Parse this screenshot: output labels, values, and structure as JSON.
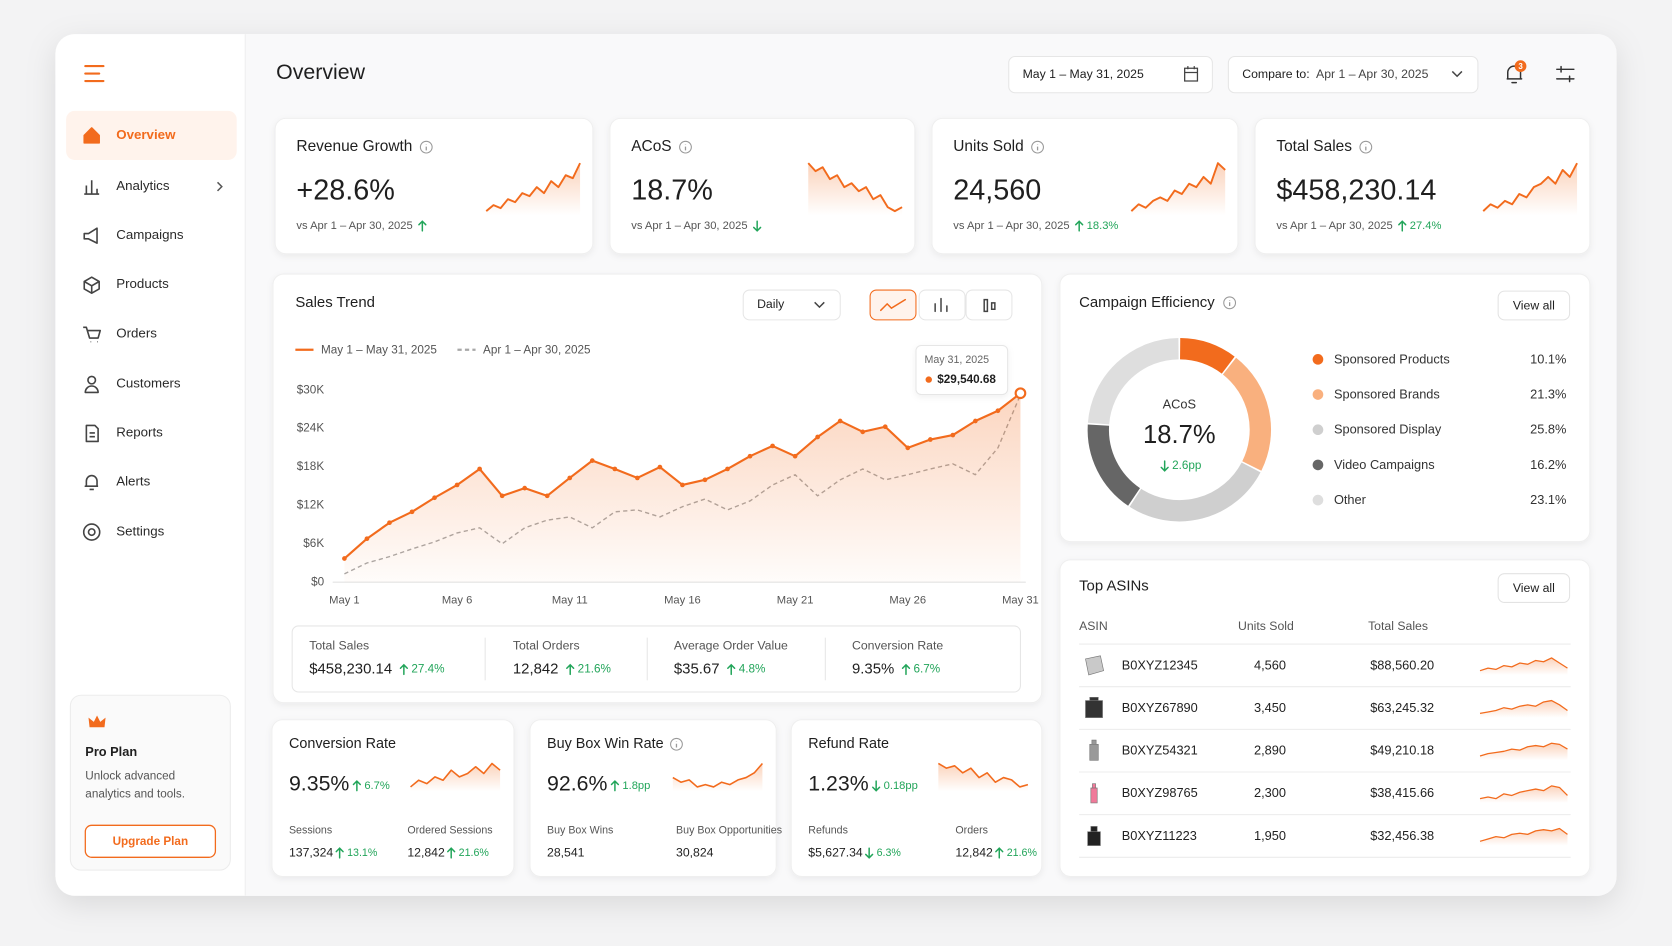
{
  "sidebar": {
    "nav": [
      "Overview",
      "Analytics",
      "Campaigns",
      "Products",
      "Orders",
      "Customers",
      "Reports",
      "Alerts",
      "Settings"
    ],
    "active": 0,
    "plan": {
      "title": "Pro Plan",
      "lines": [
        "Unlock advanced",
        "analytics and tools."
      ],
      "button": "Upgrade Plan"
    }
  },
  "header": {
    "title": "Overview",
    "date_range": "May 1 – May 31, 2025",
    "compare_label": "Compare to:",
    "compare_range": "Apr 1 – Apr 30, 2025",
    "notification_count": 3
  },
  "kpis": [
    {
      "title": "Revenue Growth",
      "value": "+28.6%",
      "compare": "vs Apr 1 – Apr 30, 2025",
      "direction": "up",
      "info": true,
      "trend": [
        2,
        3,
        2.5,
        4,
        3.5,
        5,
        4.5,
        6,
        5,
        7,
        6,
        8,
        7.5,
        10
      ]
    },
    {
      "title": "ACoS",
      "value": "18.7%",
      "compare": "vs Apr 1 – Apr 30, 2025",
      "direction": "down",
      "info": true,
      "trend": [
        9,
        8,
        8.5,
        7,
        7.5,
        6,
        6.5,
        5.5,
        6,
        4.5,
        5,
        3.5,
        3,
        3.5
      ]
    },
    {
      "title": "Units Sold",
      "value": "24,560",
      "compare": "vs Apr 1 – Apr 30, 2025",
      "change": "18.3%",
      "direction": "up",
      "info": true,
      "trend": [
        2,
        3,
        2.5,
        3.5,
        4,
        3.5,
        5,
        4.5,
        6,
        5.5,
        7,
        6,
        9,
        8
      ]
    },
    {
      "title": "Total Sales",
      "value": "$458,230.14",
      "compare": "vs Apr 1 – Apr 30, 2025",
      "change": "27.4%",
      "direction": "up",
      "info": true,
      "trend": [
        2,
        3,
        2.5,
        3.5,
        3,
        4.5,
        4,
        5.5,
        6,
        7,
        6,
        8,
        7,
        9
      ]
    }
  ],
  "sales_trend": {
    "granularity": "Daily",
    "summary": [
      {
        "label": "Total Sales",
        "value": "$458,230.14",
        "change": "27.4%",
        "direction": "up"
      },
      {
        "label": "Total Orders",
        "value": "12,842",
        "change": "21.6%",
        "direction": "up"
      },
      {
        "label": "Average Order Value",
        "value": "$35.67",
        "change": "4.8%",
        "direction": "up"
      },
      {
        "label": "Conversion Rate",
        "value": "9.35%",
        "change": "6.7%",
        "direction": "up"
      }
    ]
  },
  "chart_data": [
    {
      "type": "line",
      "title": "Sales Trend",
      "categories": [
        "May 1",
        null,
        null,
        null,
        null,
        "May 6",
        null,
        null,
        null,
        null,
        "May 11",
        null,
        null,
        null,
        null,
        "May 16",
        null,
        null,
        null,
        null,
        "May 21",
        null,
        null,
        null,
        null,
        "May 26",
        null,
        null,
        null,
        null,
        "May 31"
      ],
      "series": [
        {
          "name": "May 1 – May 31, 2025",
          "color": "#f26b1d",
          "dashed": false,
          "values": [
            3700,
            6800,
            9300,
            11000,
            13200,
            15200,
            17700,
            13500,
            14700,
            13500,
            16300,
            19000,
            17700,
            16300,
            18000,
            15200,
            16000,
            17700,
            19700,
            21300,
            19700,
            22700,
            25200,
            23500,
            24300,
            21000,
            22300,
            23000,
            25200,
            26800,
            29540.68
          ]
        },
        {
          "name": "Apr 1 – Apr 30, 2025",
          "color": "#a8a8a8",
          "dashed": true,
          "values": [
            1300,
            3000,
            4000,
            5200,
            6300,
            7700,
            8500,
            6000,
            8500,
            9700,
            10200,
            8500,
            11000,
            11300,
            10200,
            11800,
            13000,
            11300,
            12700,
            15200,
            16800,
            13500,
            16000,
            17700,
            16000,
            16800,
            17700,
            18500,
            16800,
            21000,
            29300
          ]
        }
      ],
      "ylim": [
        0,
        30000
      ],
      "yticks": [
        {
          "value": 0,
          "label": "$0"
        },
        {
          "value": 6000,
          "label": "$6K"
        },
        {
          "value": 12000,
          "label": "$12K"
        },
        {
          "value": 18000,
          "label": "$18K"
        },
        {
          "value": 24000,
          "label": "$24K"
        },
        {
          "value": 30000,
          "label": "$30K"
        }
      ],
      "grid": false,
      "tooltip": {
        "date": "May 31, 2025",
        "label": "$29,540.68"
      }
    },
    {
      "type": "donut",
      "title": "Campaign Efficiency",
      "center_title": "ACoS",
      "center_value": "18.7%",
      "center_change": "2.6pp",
      "categories": [
        "Sponsored Products",
        "Sponsored Brands",
        "Sponsored Display",
        "Video Campaigns",
        "Other"
      ],
      "values": [
        10.1,
        21.3,
        25.8,
        16.2,
        23.1
      ],
      "value_labels": [
        "10.1%",
        "21.3%",
        "25.8%",
        "16.2%",
        "23.1%"
      ],
      "colors": [
        "#f26b1d",
        "#f9b07e",
        "#cfcfcf",
        "#666666",
        "#dedede"
      ],
      "action": "View all"
    }
  ],
  "top_asins": {
    "title": "Top ASINs",
    "action": "View all",
    "columns": [
      "ASIN",
      "Units Sold",
      "Total Sales"
    ],
    "rows": [
      [
        "B0XYZ12345",
        "4,560",
        "$88,560.20"
      ],
      [
        "B0XYZ67890",
        "3,450",
        "$63,245.32"
      ],
      [
        "B0XYZ54321",
        "2,890",
        "$49,210.18"
      ],
      [
        "B0XYZ98765",
        "2,300",
        "$38,415.66"
      ],
      [
        "B0XYZ11223",
        "1,950",
        "$32,456.38"
      ]
    ],
    "trends": [
      [
        3,
        4,
        3.5,
        5,
        4.5,
        6,
        5.5,
        7,
        6.5,
        8,
        6,
        4
      ],
      [
        3,
        3.5,
        4,
        5,
        4.5,
        5.5,
        6,
        5.5,
        7,
        7.5,
        6,
        4
      ],
      [
        2,
        3,
        3.5,
        4,
        5,
        4.5,
        6,
        6.5,
        6,
        7.5,
        7,
        5
      ],
      [
        3,
        3.5,
        3,
        4.5,
        4,
        5,
        5.5,
        6,
        5.5,
        7,
        6.5,
        4
      ],
      [
        2,
        3,
        4,
        3.5,
        5,
        5.5,
        5,
        6.5,
        7,
        6.5,
        7.5,
        5
      ]
    ]
  },
  "metric_cards": [
    {
      "title": "Conversion Rate",
      "value": "9.35%",
      "change": "6.7%",
      "direction": "up",
      "info": false,
      "trend": [
        3,
        5,
        4,
        6,
        5,
        8,
        6,
        7,
        9,
        7,
        10,
        8
      ],
      "stats": [
        {
          "label": "Sessions",
          "value": "137,324",
          "change": "13.1%",
          "direction": "up"
        },
        {
          "label": "Ordered Sessions",
          "value": "12,842",
          "change": "21.6%",
          "direction": "up"
        }
      ]
    },
    {
      "title": "Buy Box Win Rate",
      "value": "92.6%",
      "change": "1.8pp",
      "direction": "up",
      "info": true,
      "trend": [
        6,
        5,
        5.5,
        4,
        4.5,
        4,
        5,
        4.5,
        5.5,
        6,
        7,
        9
      ],
      "stats": [
        {
          "label": "Buy Box Wins",
          "value": "28,541"
        },
        {
          "label": "Buy Box Opportunities",
          "value": "30,824"
        }
      ]
    },
    {
      "title": "Refund Rate",
      "value": "1.23%",
      "change": "0.18pp",
      "direction": "down",
      "info": false,
      "trend": [
        8,
        7,
        7.5,
        6,
        7,
        5,
        6,
        4,
        5,
        4.5,
        3,
        3.5
      ],
      "stats": [
        {
          "label": "Refunds",
          "value": "$5,627.34",
          "change": "6.3%",
          "direction": "down"
        },
        {
          "label": "Orders",
          "value": "12,842",
          "change": "21.6%",
          "direction": "up"
        }
      ]
    }
  ]
}
